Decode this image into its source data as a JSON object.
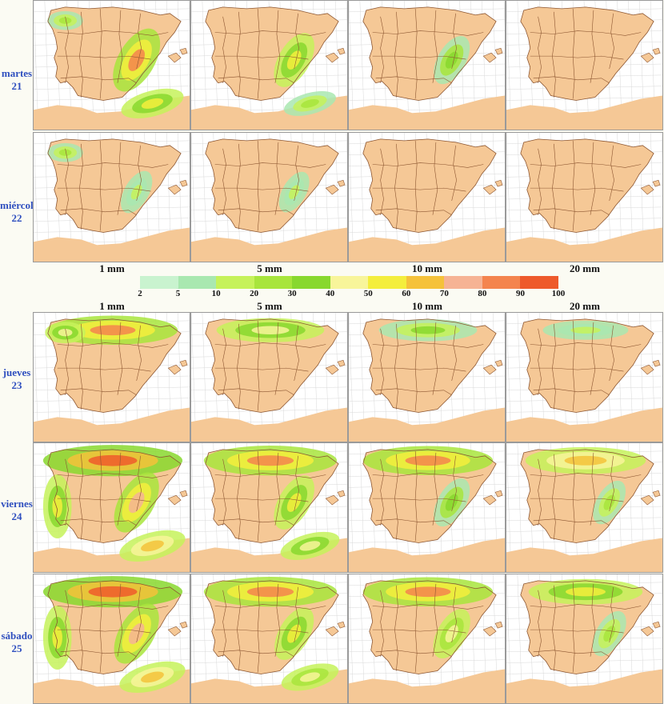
{
  "thresholds_top": [
    "1 mm",
    "5 mm",
    "10 mm",
    "20 mm"
  ],
  "thresholds_bottom": [
    "1 mm",
    "5 mm",
    "10 mm",
    "20 mm"
  ],
  "days": [
    {
      "name": "martes",
      "num": "21"
    },
    {
      "name": "miércoles",
      "num": "22"
    },
    {
      "name": "jueves",
      "num": "23"
    },
    {
      "name": "viernes",
      "num": "24"
    },
    {
      "name": "sábado",
      "num": "25"
    }
  ],
  "legend": {
    "ticks": [
      "2",
      "5",
      "10",
      "20",
      "30",
      "40",
      "50",
      "60",
      "70",
      "80",
      "90",
      "100"
    ],
    "colors": [
      "#c9f3cf",
      "#a9e8b0",
      "#c6f25a",
      "#a8e53c",
      "#88d82e",
      "#f8f59a",
      "#f4ee3c",
      "#f5c23a",
      "#f6b394",
      "#f4844e",
      "#ee5a2c"
    ]
  },
  "colors": {
    "land": "#f5c896",
    "sea": "#ffffff",
    "border": "#8c5530",
    "day_label": "#2f4fbf"
  },
  "maps": [
    [
      [
        [
          "band-east",
          0.9
        ],
        [
          "band-south",
          0.6
        ],
        [
          "band-northwest",
          0.3
        ]
      ],
      [
        [
          "band-east",
          0.6
        ],
        [
          "band-south",
          0.3
        ]
      ],
      [
        [
          "band-east",
          0.4
        ]
      ],
      []
    ],
    [
      [
        [
          "band-northwest",
          0.3
        ],
        [
          "band-east",
          0.2
        ]
      ],
      [
        [
          "band-east",
          0.15
        ]
      ],
      [],
      []
    ],
    [
      [
        [
          "band-north",
          0.85
        ],
        [
          "band-northwest",
          0.5
        ]
      ],
      [
        [
          "band-north",
          0.5
        ]
      ],
      [
        [
          "band-north",
          0.35
        ]
      ],
      [
        [
          "band-north",
          0.15
        ]
      ]
    ],
    [
      [
        [
          "band-north",
          1.0
        ],
        [
          "band-east",
          0.8
        ],
        [
          "band-south",
          0.7
        ],
        [
          "band-west",
          0.6
        ]
      ],
      [
        [
          "band-north",
          0.9
        ],
        [
          "band-east",
          0.6
        ],
        [
          "band-south",
          0.5
        ]
      ],
      [
        [
          "band-north",
          0.85
        ],
        [
          "band-east",
          0.4
        ]
      ],
      [
        [
          "band-north",
          0.7
        ],
        [
          "band-east",
          0.25
        ]
      ]
    ],
    [
      [
        [
          "band-north",
          1.0
        ],
        [
          "band-east",
          0.8
        ],
        [
          "band-south",
          0.7
        ],
        [
          "band-west",
          0.6
        ]
      ],
      [
        [
          "band-north",
          0.9
        ],
        [
          "band-east",
          0.55
        ],
        [
          "band-south",
          0.45
        ]
      ],
      [
        [
          "band-north",
          0.85
        ],
        [
          "band-east",
          0.45
        ]
      ],
      [
        [
          "band-north",
          0.6
        ],
        [
          "band-east",
          0.3
        ]
      ]
    ]
  ]
}
